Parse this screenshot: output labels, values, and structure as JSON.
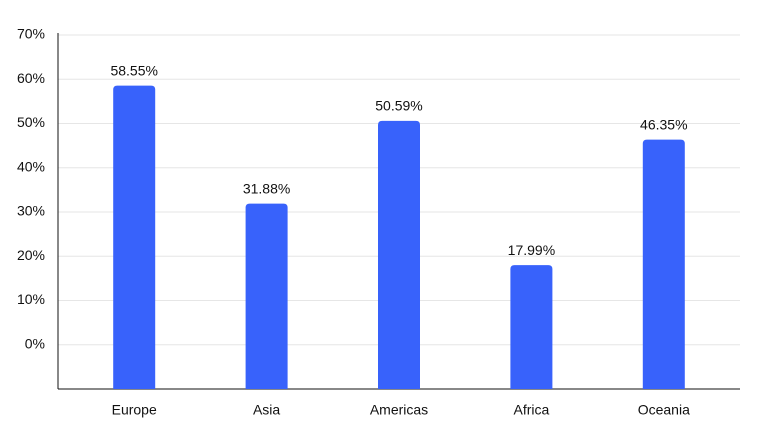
{
  "chart_data": {
    "type": "bar",
    "categories": [
      "Europe",
      "Asia",
      "Americas",
      "Africa",
      "Oceania"
    ],
    "values": [
      58.55,
      31.88,
      50.59,
      17.99,
      46.35
    ],
    "value_labels": [
      "58.55%",
      "31.88%",
      "50.59%",
      "17.99%",
      "46.35%"
    ],
    "color": "#3862fb",
    "ylim": [
      -10,
      70
    ],
    "yticks": [
      {
        "value": 0,
        "label": "0%"
      },
      {
        "value": 10,
        "label": "10%"
      },
      {
        "value": 20,
        "label": "20%"
      },
      {
        "value": 30,
        "label": "30%"
      },
      {
        "value": 40,
        "label": "40%"
      },
      {
        "value": 50,
        "label": "50%"
      },
      {
        "value": 60,
        "label": "60%"
      },
      {
        "value": 70,
        "label": "70%"
      }
    ],
    "grid": true
  }
}
